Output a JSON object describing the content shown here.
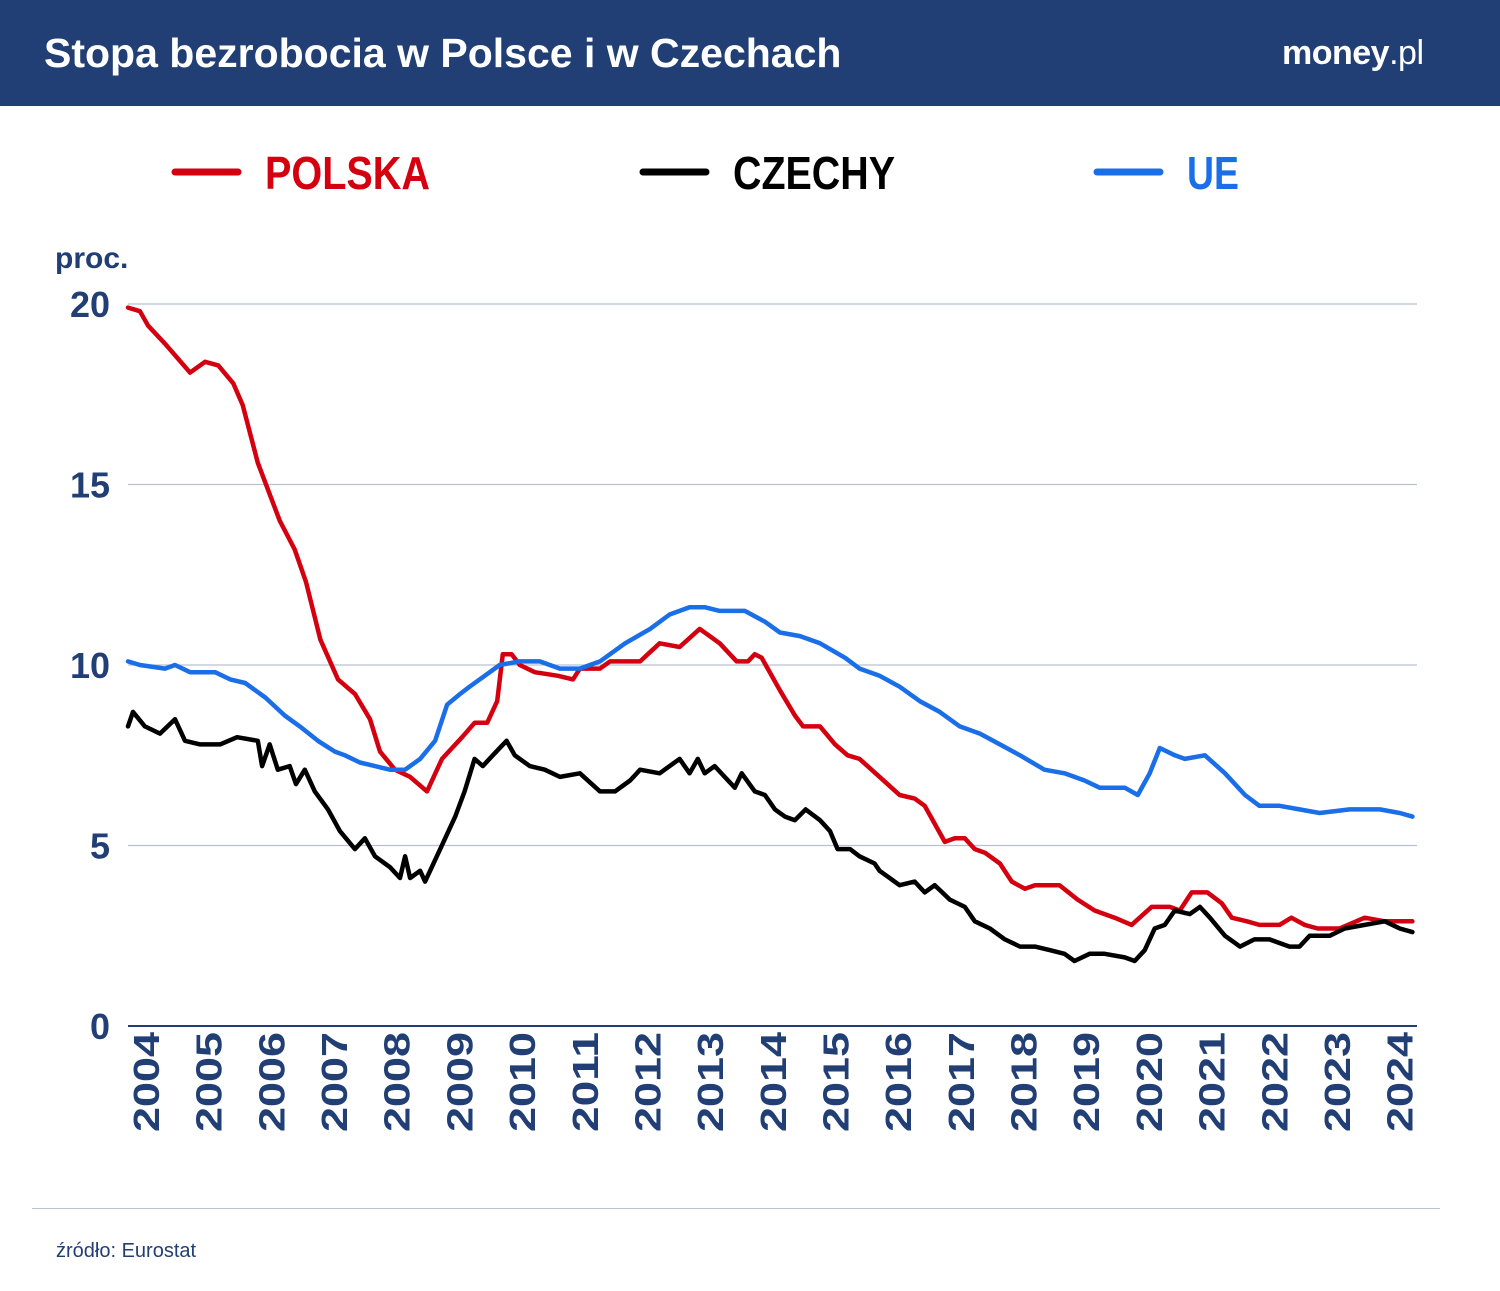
{
  "header": {
    "title": "Stopa bezrobocia w Polsce i w Czechach",
    "logo": "money.pl",
    "logo_main": "money",
    "logo_suffix": ".pl",
    "background": "#213f75"
  },
  "footer": {
    "source": "źródło: Eurostat"
  },
  "chart_data": {
    "type": "line",
    "title": "Stopa bezrobocia w Polsce i w Czechach",
    "ylabel": "proc.",
    "ylim": [
      0,
      20
    ],
    "yticks": [
      0,
      5,
      10,
      15,
      20
    ],
    "xlim": [
      2004,
      2024.5
    ],
    "xticks": [
      "2004",
      "2005",
      "2006",
      "2007",
      "2008",
      "2009",
      "2010",
      "2011",
      "2012",
      "2013",
      "2014",
      "2015",
      "2016",
      "2017",
      "2018",
      "2019",
      "2020",
      "2021",
      "2022",
      "2023",
      "2024"
    ],
    "grid": true,
    "legend_position": "top",
    "series": [
      {
        "name": "POLSKA",
        "color": "#d4000f",
        "x": [
          2004.0,
          2004.19,
          2004.32,
          2004.59,
          2004.99,
          2005.23,
          2005.44,
          2005.68,
          2005.83,
          2006.07,
          2006.42,
          2006.66,
          2006.84,
          2007.07,
          2007.35,
          2007.62,
          2007.86,
          2008.02,
          2008.26,
          2008.5,
          2008.77,
          2008.93,
          2009.01,
          2009.33,
          2009.53,
          2009.73,
          2009.89,
          2009.98,
          2010.12,
          2010.25,
          2010.49,
          2010.86,
          2011.1,
          2011.21,
          2011.53,
          2011.69,
          2012.17,
          2012.48,
          2012.8,
          2013.12,
          2013.44,
          2013.71,
          2013.89,
          2014.0,
          2014.11,
          2014.4,
          2014.64,
          2014.77,
          2015.04,
          2015.28,
          2015.48,
          2015.67,
          2015.99,
          2016.31,
          2016.55,
          2016.71,
          2017.03,
          2017.19,
          2017.35,
          2017.51,
          2017.67,
          2017.91,
          2018.1,
          2018.31,
          2018.47,
          2018.86,
          2019.15,
          2019.42,
          2019.74,
          2020.01,
          2020.33,
          2020.62,
          2020.78,
          2020.97,
          2021.22,
          2021.45,
          2021.61,
          2021.85,
          2022.05,
          2022.37,
          2022.56,
          2022.77,
          2022.98,
          2023.33,
          2023.73,
          2024.05,
          2024.49
        ],
        "y": [
          19.9,
          19.8,
          19.4,
          18.9,
          18.1,
          18.4,
          18.3,
          17.8,
          17.2,
          15.6,
          14.0,
          13.2,
          12.3,
          10.7,
          9.6,
          9.2,
          8.5,
          7.6,
          7.1,
          6.9,
          6.5,
          7.1,
          7.4,
          8.0,
          8.4,
          8.4,
          9.0,
          10.3,
          10.3,
          10.0,
          9.8,
          9.7,
          9.6,
          9.9,
          9.9,
          10.1,
          10.1,
          10.6,
          10.5,
          11.0,
          10.6,
          10.1,
          10.1,
          10.3,
          10.2,
          9.3,
          8.6,
          8.3,
          8.3,
          7.8,
          7.5,
          7.4,
          6.9,
          6.4,
          6.3,
          6.1,
          5.1,
          5.2,
          5.2,
          4.9,
          4.8,
          4.5,
          4.0,
          3.8,
          3.9,
          3.9,
          3.5,
          3.2,
          3.0,
          2.8,
          3.3,
          3.3,
          3.2,
          3.7,
          3.7,
          3.4,
          3.0,
          2.9,
          2.8,
          2.8,
          3.0,
          2.8,
          2.7,
          2.7,
          3.0,
          2.9,
          2.9
        ]
      },
      {
        "name": "CZECHY",
        "color": "#000000",
        "x": [
          2004.0,
          2004.08,
          2004.27,
          2004.51,
          2004.75,
          2004.91,
          2005.15,
          2005.47,
          2005.74,
          2006.07,
          2006.14,
          2006.26,
          2006.39,
          2006.58,
          2006.68,
          2006.82,
          2006.98,
          2007.19,
          2007.38,
          2007.62,
          2007.78,
          2007.94,
          2008.18,
          2008.34,
          2008.42,
          2008.5,
          2008.66,
          2008.74,
          2008.98,
          2009.22,
          2009.37,
          2009.53,
          2009.66,
          2009.82,
          2010.04,
          2010.17,
          2010.41,
          2010.65,
          2010.89,
          2011.21,
          2011.53,
          2011.77,
          2012.01,
          2012.17,
          2012.48,
          2012.8,
          2012.96,
          2013.09,
          2013.2,
          2013.36,
          2013.52,
          2013.68,
          2013.79,
          2014.0,
          2014.16,
          2014.32,
          2014.48,
          2014.64,
          2014.81,
          2015.04,
          2015.2,
          2015.32,
          2015.52,
          2015.67,
          2015.91,
          2015.99,
          2016.31,
          2016.55,
          2016.71,
          2016.87,
          2017.11,
          2017.35,
          2017.51,
          2017.75,
          2017.99,
          2018.23,
          2018.47,
          2018.71,
          2018.94,
          2019.1,
          2019.34,
          2019.58,
          2019.9,
          2020.06,
          2020.22,
          2020.38,
          2020.54,
          2020.7,
          2020.94,
          2021.1,
          2021.26,
          2021.5,
          2021.74,
          2021.97,
          2022.21,
          2022.53,
          2022.69,
          2022.85,
          2023.17,
          2023.41,
          2023.73,
          2024.05,
          2024.29,
          2024.49
        ],
        "y": [
          8.3,
          8.7,
          8.3,
          8.1,
          8.5,
          7.9,
          7.8,
          7.8,
          8.0,
          7.9,
          7.2,
          7.8,
          7.1,
          7.2,
          6.7,
          7.1,
          6.5,
          6.0,
          5.4,
          4.9,
          5.2,
          4.7,
          4.4,
          4.1,
          4.7,
          4.1,
          4.3,
          4.0,
          4.9,
          5.8,
          6.5,
          7.4,
          7.2,
          7.5,
          7.9,
          7.5,
          7.2,
          7.1,
          6.9,
          7.0,
          6.5,
          6.5,
          6.8,
          7.1,
          7.0,
          7.4,
          7.0,
          7.4,
          7.0,
          7.2,
          6.9,
          6.6,
          7.0,
          6.5,
          6.4,
          6.0,
          5.8,
          5.7,
          6.0,
          5.7,
          5.4,
          4.9,
          4.9,
          4.7,
          4.5,
          4.3,
          3.9,
          4.0,
          3.7,
          3.9,
          3.5,
          3.3,
          2.9,
          2.7,
          2.4,
          2.2,
          2.2,
          2.1,
          2.0,
          1.8,
          2.0,
          2.0,
          1.9,
          1.8,
          2.1,
          2.7,
          2.8,
          3.2,
          3.1,
          3.3,
          3.0,
          2.5,
          2.2,
          2.4,
          2.4,
          2.2,
          2.2,
          2.5,
          2.5,
          2.7,
          2.8,
          2.9,
          2.7,
          2.6
        ]
      },
      {
        "name": "UE",
        "color": "#1a6ee8",
        "x": [
          2004.0,
          2004.19,
          2004.59,
          2004.75,
          2004.99,
          2005.39,
          2005.63,
          2005.87,
          2006.19,
          2006.5,
          2006.74,
          2007.03,
          2007.3,
          2007.46,
          2007.7,
          2007.94,
          2008.18,
          2008.42,
          2008.66,
          2008.9,
          2009.09,
          2009.3,
          2009.45,
          2009.69,
          2009.93,
          2010.25,
          2010.57,
          2010.89,
          2011.21,
          2011.53,
          2011.93,
          2012.33,
          2012.64,
          2012.96,
          2013.2,
          2013.44,
          2013.84,
          2014.16,
          2014.4,
          2014.72,
          2015.04,
          2015.44,
          2015.67,
          2015.99,
          2016.31,
          2016.63,
          2016.95,
          2017.27,
          2017.59,
          2017.91,
          2018.23,
          2018.62,
          2018.94,
          2019.26,
          2019.5,
          2019.9,
          2020.11,
          2020.3,
          2020.46,
          2020.7,
          2020.86,
          2021.18,
          2021.5,
          2021.82,
          2022.05,
          2022.37,
          2022.69,
          2023.01,
          2023.49,
          2023.97,
          2024.29,
          2024.49
        ],
        "y": [
          10.1,
          10.0,
          9.9,
          10.0,
          9.8,
          9.8,
          9.6,
          9.5,
          9.1,
          8.6,
          8.3,
          7.9,
          7.6,
          7.5,
          7.3,
          7.2,
          7.1,
          7.1,
          7.4,
          7.9,
          8.9,
          9.2,
          9.4,
          9.7,
          10.0,
          10.1,
          10.1,
          9.9,
          9.9,
          10.1,
          10.6,
          11.0,
          11.4,
          11.6,
          11.6,
          11.5,
          11.5,
          11.2,
          10.9,
          10.8,
          10.6,
          10.2,
          9.9,
          9.7,
          9.4,
          9.0,
          8.7,
          8.3,
          8.1,
          7.8,
          7.5,
          7.1,
          7.0,
          6.8,
          6.6,
          6.6,
          6.4,
          7.0,
          7.7,
          7.5,
          7.4,
          7.5,
          7.0,
          6.4,
          6.1,
          6.1,
          6.0,
          5.9,
          6.0,
          6.0,
          5.9,
          5.8
        ]
      }
    ]
  }
}
